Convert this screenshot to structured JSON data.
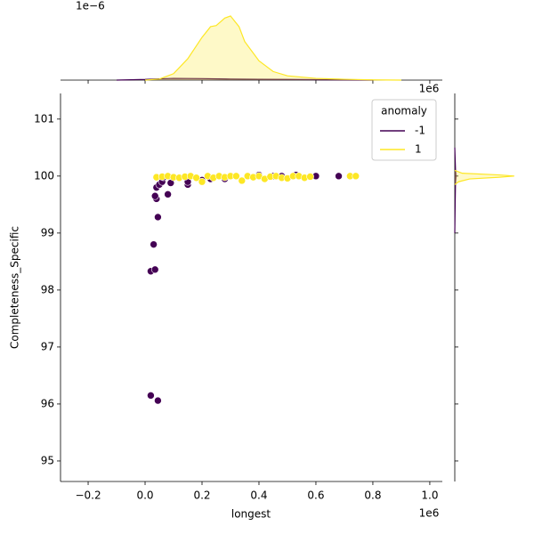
{
  "chart_data": {
    "type": "scatter",
    "x_label": "longest",
    "y_label": "Completeness_Specific",
    "x_offset_label": "1e6",
    "top_x_offset_label": "1e6",
    "top_density_offset_label": "1e−6",
    "legend_title": "anomaly",
    "legend_corner": "upper right",
    "xlim": [
      -0.297,
      1.044
    ],
    "ylim": [
      94.64,
      101.45
    ],
    "xticks": [
      {
        "value": -0.2,
        "label": "−0.2"
      },
      {
        "value": 0,
        "label": "0.0"
      },
      0.2,
      0.4,
      0.6,
      0.8,
      {
        "value": 1,
        "label": "1.0"
      }
    ],
    "yticks": [
      95,
      96,
      97,
      98,
      99,
      100,
      101
    ],
    "series": [
      {
        "name": "-1",
        "color": "#440154",
        "x": [
          0.02,
          0.035,
          0.03,
          0.045,
          0.04,
          0.035,
          0.04,
          0.05,
          0.06,
          0.065,
          0.08,
          0.09,
          0.15,
          0.15,
          0.2,
          0.23,
          0.28,
          0.4,
          0.45,
          0.48,
          0.53,
          0.6,
          0.68,
          0.02,
          0.045
        ],
        "y": [
          98.33,
          98.36,
          98.8,
          99.28,
          99.6,
          99.65,
          99.8,
          99.85,
          99.9,
          99.98,
          99.68,
          99.88,
          99.85,
          99.9,
          99.93,
          99.95,
          99.95,
          100.02,
          100.0,
          100.0,
          100.02,
          100.0,
          100.0,
          96.15,
          96.06
        ]
      },
      {
        "name": "1",
        "color": "#fde725",
        "x": [
          0.04,
          0.06,
          0.08,
          0.1,
          0.12,
          0.14,
          0.16,
          0.18,
          0.2,
          0.22,
          0.24,
          0.26,
          0.28,
          0.3,
          0.32,
          0.34,
          0.36,
          0.38,
          0.4,
          0.42,
          0.44,
          0.46,
          0.48,
          0.5,
          0.52,
          0.54,
          0.56,
          0.58,
          0.72,
          0.74
        ],
        "y": [
          99.98,
          99.99,
          100.0,
          99.98,
          99.97,
          99.99,
          100.0,
          99.97,
          99.9,
          100.0,
          99.97,
          100.0,
          99.98,
          100.0,
          100.0,
          99.92,
          100.0,
          99.98,
          100.0,
          99.95,
          99.99,
          100.0,
          99.97,
          99.96,
          100.0,
          100.0,
          99.97,
          99.99,
          100.0,
          100.0
        ]
      }
    ],
    "top_kde": {
      "ylim": [
        0,
        3.33
      ],
      "curves": [
        {
          "x": [
            -0.1,
            0.0,
            0.05,
            0.1,
            0.2,
            0.3,
            0.4,
            0.5,
            0.6,
            0.7,
            0.8
          ],
          "density": [
            0,
            0.03,
            0.06,
            0.08,
            0.07,
            0.05,
            0.04,
            0.03,
            0.02,
            0.01,
            0
          ]
        },
        {
          "x": [
            0.0,
            0.05,
            0.1,
            0.15,
            0.2,
            0.23,
            0.25,
            0.28,
            0.3,
            0.33,
            0.35,
            0.4,
            0.45,
            0.5,
            0.6,
            0.7,
            0.8,
            0.9
          ],
          "density": [
            0,
            0.05,
            0.3,
            1.0,
            2.0,
            2.5,
            2.55,
            2.9,
            3.0,
            2.5,
            1.8,
            0.9,
            0.4,
            0.2,
            0.08,
            0.04,
            0.01,
            0
          ]
        }
      ]
    },
    "right_kde": {
      "xlim": [
        0,
        8.5
      ],
      "curves": [
        {
          "y": [
            99.0,
            99.5,
            99.9,
            100.0,
            100.1,
            100.5
          ],
          "density": [
            0,
            0.05,
            0.1,
            0.15,
            0.1,
            0
          ]
        },
        {
          "y": [
            99.85,
            99.9,
            99.95,
            99.98,
            100.0,
            100.02,
            100.05,
            100.1
          ],
          "density": [
            0,
            0.5,
            2,
            6,
            8,
            6,
            1,
            0
          ]
        }
      ]
    }
  }
}
